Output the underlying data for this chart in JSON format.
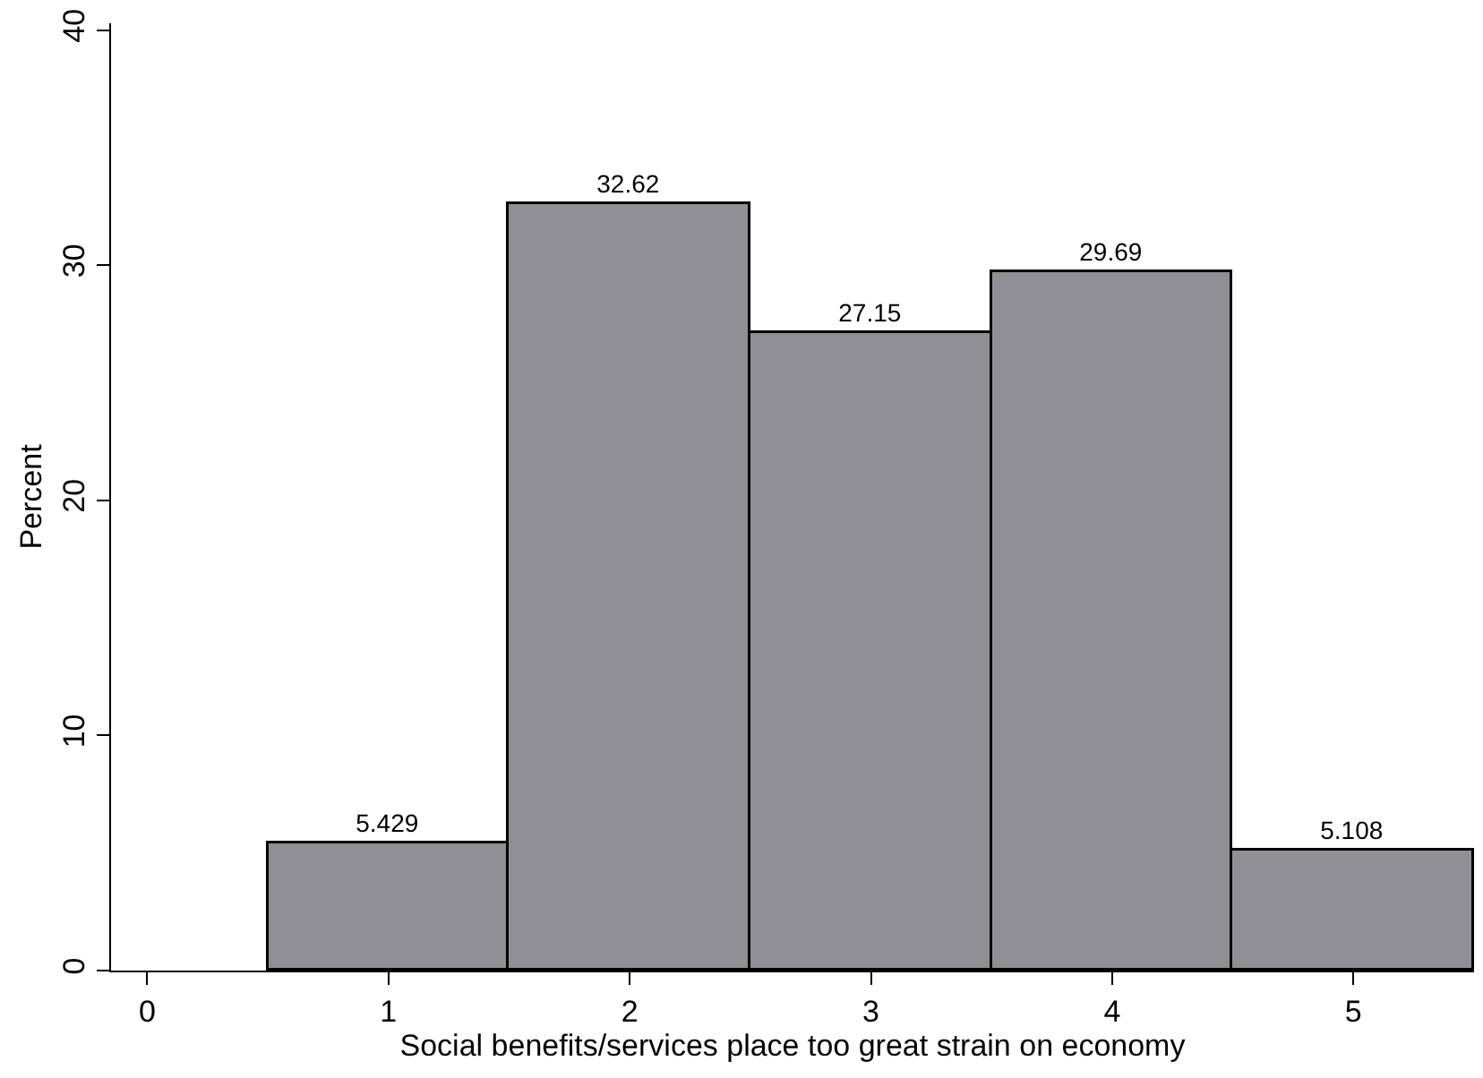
{
  "chart_data": {
    "type": "histogram",
    "xlabel": "Social benefits/services place too great strain on economy",
    "ylabel": "Percent",
    "bins": [
      0.5,
      1.5,
      2.5,
      3.5,
      4.5,
      5.5
    ],
    "values": [
      5.429,
      32.62,
      27.15,
      29.69,
      5.108
    ],
    "color": "#909094",
    "xlim": [
      -0.15,
      5.5
    ],
    "xticks": [
      0,
      1,
      2,
      3,
      4,
      5
    ],
    "ylim": [
      0,
      40.3
    ],
    "yticks": [
      0,
      10,
      20,
      30,
      40
    ],
    "data_labels": true
  }
}
